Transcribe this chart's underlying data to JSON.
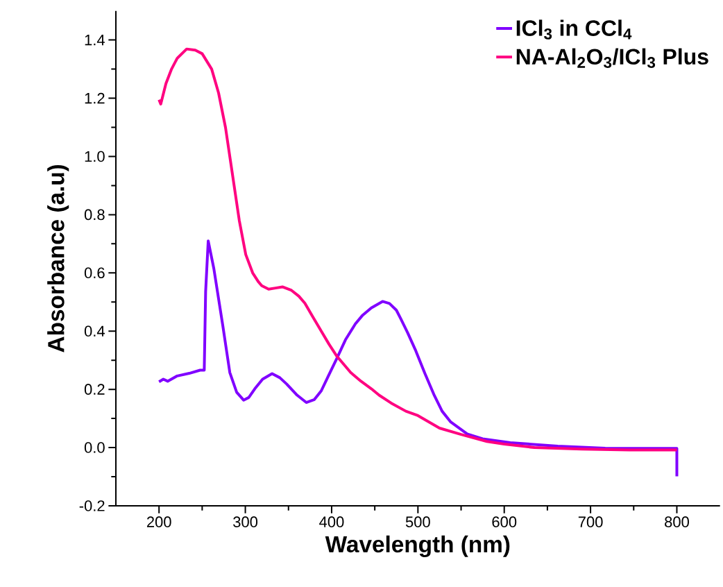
{
  "chart_data": {
    "type": "line",
    "xlabel": "Wavelength (nm)",
    "ylabel": "Absorbance (a.u)",
    "xlim": [
      150,
      850
    ],
    "ylim": [
      -0.2,
      1.5
    ],
    "xticks": [
      200,
      300,
      400,
      500,
      600,
      700,
      800
    ],
    "yticks": [
      {
        "value": -0.2,
        "label": "-0.2"
      },
      {
        "value": 0,
        "label": "0.0"
      },
      {
        "value": 0.2,
        "label": "0.2"
      },
      {
        "value": 0.4,
        "label": "0.4"
      },
      {
        "value": 0.6,
        "label": "0.6"
      },
      {
        "value": 0.8,
        "label": "0.8"
      },
      {
        "value": 1.0,
        "label": "1.0"
      },
      {
        "value": 1.2,
        "label": "1.2"
      },
      {
        "value": 1.4,
        "label": "1.4"
      }
    ],
    "legend": "top right",
    "grid": false,
    "marker": "none",
    "line_style": "solid",
    "series": [
      {
        "name": "ICl$_{3}$ in CCl$_{4}$",
        "color": "#8000ff",
        "x": [
          200,
          205,
          210,
          221,
          235,
          247.6,
          252.4,
          254,
          257,
          263.5,
          274,
          282,
          290,
          298,
          304,
          311,
          320,
          331,
          340,
          348,
          360,
          370.6,
          380,
          388,
          396,
          406,
          416,
          427.5,
          436,
          446,
          459,
          467,
          475,
          480,
          488,
          497,
          508,
          519,
          528,
          538,
          557.6,
          575,
          607,
          662,
          717,
          800,
          800
        ],
        "values": [
          0.226,
          0.235,
          0.228,
          0.246,
          0.255,
          0.266,
          0.266,
          0.536,
          0.71,
          0.615,
          0.417,
          0.258,
          0.19,
          0.163,
          0.172,
          0.202,
          0.235,
          0.254,
          0.24,
          0.218,
          0.18,
          0.155,
          0.165,
          0.195,
          0.245,
          0.306,
          0.37,
          0.425,
          0.455,
          0.48,
          0.502,
          0.495,
          0.472,
          0.443,
          0.395,
          0.336,
          0.255,
          0.179,
          0.125,
          0.088,
          0.046,
          0.03,
          0.017,
          0.005,
          -0.002,
          -0.003,
          -0.099
        ]
      },
      {
        "name": "NA-Al$_{2}$O$_{3}$/ICl$_{3}$ Plus",
        "color": "#ff0080",
        "x": [
          200,
          202,
          208,
          214.5,
          221,
          232,
          242,
          250,
          261,
          269,
          277,
          285,
          293,
          300.5,
          308.5,
          315,
          319,
          327,
          335,
          343,
          353.5,
          362,
          369,
          378,
          388,
          397,
          406,
          422,
          434,
          446,
          455,
          469,
          486,
          500,
          525,
          550,
          580,
          600,
          635,
          690,
          745,
          800
        ],
        "values": [
          1.195,
          1.18,
          1.25,
          1.3,
          1.337,
          1.369,
          1.365,
          1.353,
          1.3,
          1.218,
          1.1,
          0.94,
          0.78,
          0.663,
          0.6,
          0.57,
          0.556,
          0.544,
          0.548,
          0.552,
          0.54,
          0.52,
          0.496,
          0.45,
          0.4,
          0.355,
          0.314,
          0.258,
          0.228,
          0.202,
          0.18,
          0.153,
          0.125,
          0.11,
          0.067,
          0.045,
          0.021,
          0.012,
          0.0,
          -0.005,
          -0.008,
          -0.008
        ]
      }
    ]
  }
}
